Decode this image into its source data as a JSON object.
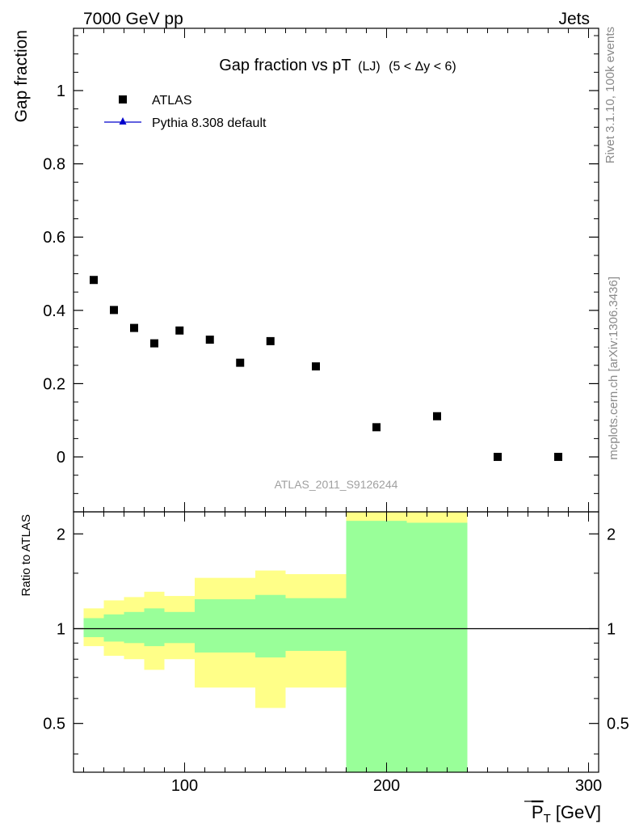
{
  "header": {
    "left": "7000 GeV pp",
    "right": "Jets"
  },
  "side_text": {
    "rivet": "Rivet 3.1.10,  100k events",
    "mcplots": "mcplots.cern.ch [arXiv:1306.3436]"
  },
  "watermark": "ATLAS_2011_S9126244",
  "colors": {
    "data": "#000000",
    "mc": "#0000cc",
    "band_inner": "#99ff99",
    "band_outer": "#ffff88"
  },
  "chart_data": [
    {
      "type": "scatter",
      "title_main": "Gap fraction vs pT",
      "title_sub": "(LJ)",
      "title_range": "(5 < Δy < 6)",
      "ylabel": "Gap fraction",
      "xlim": [
        45,
        305
      ],
      "ylim": [
        -0.15,
        1.17
      ],
      "yticks": [
        0,
        0.2,
        0.4,
        0.6,
        0.8,
        1
      ],
      "ytick_labels": [
        "0",
        "0.2",
        "0.4",
        "0.6",
        "0.8",
        "1"
      ],
      "legend_position": "top-left",
      "series": [
        {
          "name": "ATLAS",
          "marker": "square",
          "x": [
            55,
            65,
            75,
            85,
            97.5,
            112.5,
            127.5,
            142.5,
            165,
            195,
            225,
            255,
            285
          ],
          "y": [
            0.483,
            0.401,
            0.352,
            0.31,
            0.345,
            0.32,
            0.257,
            0.316,
            0.247,
            0.081,
            0.111,
            0.0,
            0.0
          ]
        },
        {
          "name": "Pythia 8.308 default",
          "marker": "triangle",
          "x": [],
          "y": []
        }
      ]
    },
    {
      "type": "area",
      "ylabel": "Ratio to ATLAS",
      "xlabel_main": "P",
      "xlabel_sub": "T",
      "xlabel_unit": "[GeV]",
      "xlim": [
        45,
        305
      ],
      "ylim": [
        0.35,
        2.35
      ],
      "xticks": [
        100,
        200,
        300
      ],
      "xtick_labels": [
        "100",
        "200",
        "300"
      ],
      "yticks": [
        0.5,
        1,
        2
      ],
      "ytick_labels": [
        "0.5",
        "1",
        "2"
      ],
      "reference_line": 1,
      "bins": [
        {
          "lo": 50,
          "hi": 60,
          "inner": [
            0.94,
            1.08
          ],
          "outer": [
            0.88,
            1.16
          ]
        },
        {
          "lo": 60,
          "hi": 70,
          "inner": [
            0.91,
            1.11
          ],
          "outer": [
            0.82,
            1.23
          ]
        },
        {
          "lo": 70,
          "hi": 80,
          "inner": [
            0.9,
            1.13
          ],
          "outer": [
            0.8,
            1.26
          ]
        },
        {
          "lo": 80,
          "hi": 90,
          "inner": [
            0.88,
            1.16
          ],
          "outer": [
            0.74,
            1.31
          ]
        },
        {
          "lo": 90,
          "hi": 105,
          "inner": [
            0.9,
            1.13
          ],
          "outer": [
            0.8,
            1.27
          ]
        },
        {
          "lo": 105,
          "hi": 120,
          "inner": [
            0.84,
            1.24
          ],
          "outer": [
            0.65,
            1.45
          ]
        },
        {
          "lo": 120,
          "hi": 135,
          "inner": [
            0.84,
            1.24
          ],
          "outer": [
            0.65,
            1.45
          ]
        },
        {
          "lo": 135,
          "hi": 150,
          "inner": [
            0.81,
            1.28
          ],
          "outer": [
            0.56,
            1.53
          ]
        },
        {
          "lo": 150,
          "hi": 180,
          "inner": [
            0.85,
            1.25
          ],
          "outer": [
            0.65,
            1.49
          ]
        },
        {
          "lo": 180,
          "hi": 210,
          "inner": [
            0.35,
            2.2
          ],
          "outer": [
            0.35,
            2.4
          ]
        },
        {
          "lo": 210,
          "hi": 240,
          "inner": [
            0.35,
            2.17
          ],
          "outer": [
            0.35,
            2.4
          ]
        }
      ]
    }
  ]
}
